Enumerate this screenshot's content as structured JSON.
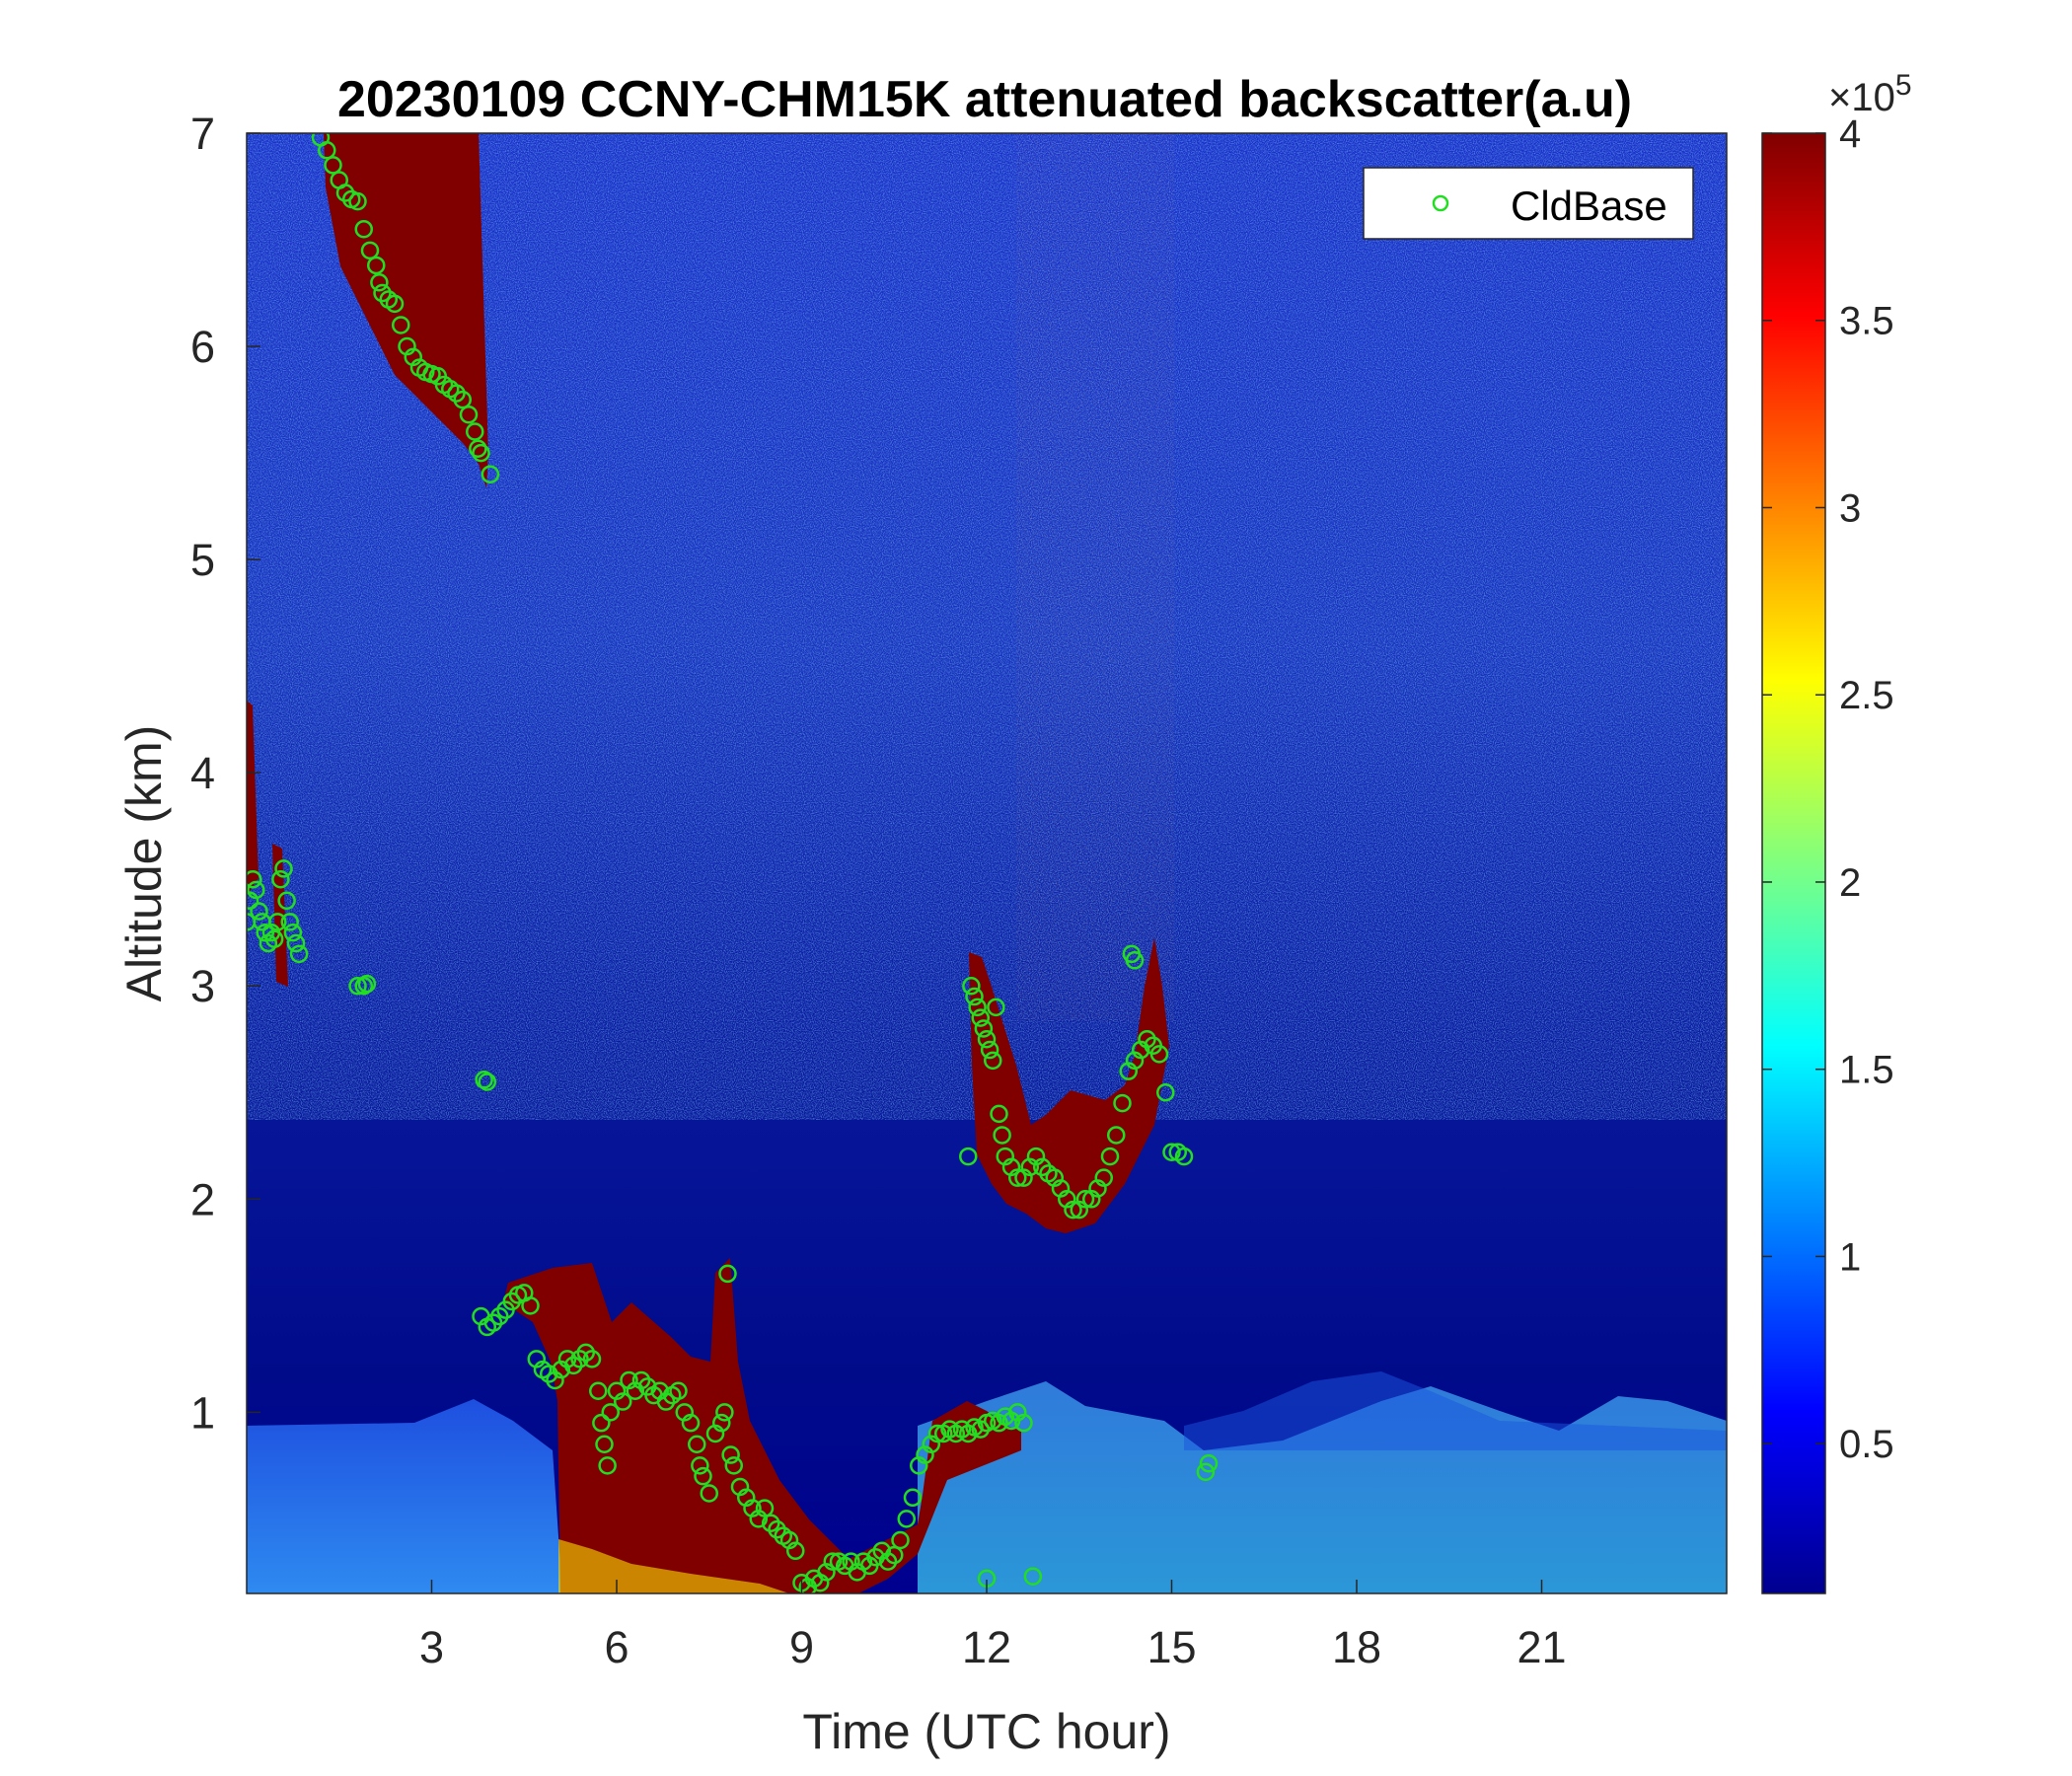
{
  "chart_data": {
    "type": "heatmap",
    "title": "20230109 CCNY-CHM15K attenuated backscatter(a.u)",
    "xlabel": "Time (UTC hour)",
    "ylabel": "Altitude (km)",
    "xlim": [
      0,
      24
    ],
    "ylim": [
      0.15,
      7
    ],
    "xticks": [
      3,
      6,
      9,
      12,
      15,
      18,
      21
    ],
    "yticks": [
      1,
      2,
      3,
      4,
      5,
      6,
      7
    ],
    "colorbar": {
      "colormap": "jet",
      "limits": [
        0.1,
        4
      ],
      "ticks": [
        0.5,
        1,
        1.5,
        2,
        2.5,
        3,
        3.5,
        4
      ],
      "multiplier": "×10",
      "exponent": "5"
    },
    "grid": false,
    "legend": {
      "location": "top-right",
      "entries": [
        "CldBase"
      ]
    },
    "colors": {
      "cloud_base_marker": "#22dd22",
      "background_low": "#00008f",
      "saturated": "#800000"
    },
    "series": [
      {
        "name": "CldBase",
        "marker": "circle",
        "points": [
          [
            0.0,
            3.3
          ],
          [
            0.05,
            3.4
          ],
          [
            0.1,
            3.5
          ],
          [
            0.15,
            3.45
          ],
          [
            0.2,
            3.35
          ],
          [
            0.25,
            3.3
          ],
          [
            0.3,
            3.25
          ],
          [
            0.35,
            3.2
          ],
          [
            0.4,
            3.25
          ],
          [
            0.45,
            3.22
          ],
          [
            0.5,
            3.3
          ],
          [
            0.55,
            3.5
          ],
          [
            0.6,
            3.55
          ],
          [
            0.65,
            3.4
          ],
          [
            0.7,
            3.3
          ],
          [
            0.75,
            3.25
          ],
          [
            0.8,
            3.2
          ],
          [
            0.85,
            3.15
          ],
          [
            1.2,
            6.98
          ],
          [
            1.3,
            6.92
          ],
          [
            1.4,
            6.85
          ],
          [
            1.5,
            6.78
          ],
          [
            1.6,
            6.72
          ],
          [
            1.7,
            6.69
          ],
          [
            1.8,
            6.68
          ],
          [
            1.9,
            6.55
          ],
          [
            2.0,
            6.45
          ],
          [
            2.1,
            6.38
          ],
          [
            2.15,
            6.3
          ],
          [
            2.2,
            6.25
          ],
          [
            2.3,
            6.22
          ],
          [
            2.4,
            6.2
          ],
          [
            2.5,
            6.1
          ],
          [
            2.6,
            6.0
          ],
          [
            2.7,
            5.95
          ],
          [
            2.8,
            5.9
          ],
          [
            2.9,
            5.88
          ],
          [
            3.0,
            5.87
          ],
          [
            3.1,
            5.86
          ],
          [
            3.2,
            5.82
          ],
          [
            3.3,
            5.8
          ],
          [
            3.4,
            5.78
          ],
          [
            3.5,
            5.75
          ],
          [
            3.6,
            5.68
          ],
          [
            3.7,
            5.6
          ],
          [
            3.75,
            5.52
          ],
          [
            3.8,
            5.5
          ],
          [
            3.95,
            5.4
          ],
          [
            1.8,
            3.0
          ],
          [
            1.9,
            3.0
          ],
          [
            1.95,
            3.01
          ],
          [
            3.85,
            2.56
          ],
          [
            3.9,
            2.55
          ],
          [
            3.8,
            1.45
          ],
          [
            3.9,
            1.4
          ],
          [
            4.0,
            1.42
          ],
          [
            4.1,
            1.45
          ],
          [
            4.2,
            1.48
          ],
          [
            4.3,
            1.52
          ],
          [
            4.4,
            1.55
          ],
          [
            4.5,
            1.56
          ],
          [
            4.6,
            1.5
          ],
          [
            4.7,
            1.25
          ],
          [
            4.8,
            1.2
          ],
          [
            4.9,
            1.18
          ],
          [
            5.0,
            1.15
          ],
          [
            5.1,
            1.2
          ],
          [
            5.2,
            1.25
          ],
          [
            5.3,
            1.22
          ],
          [
            5.4,
            1.25
          ],
          [
            5.5,
            1.28
          ],
          [
            5.6,
            1.25
          ],
          [
            5.7,
            1.1
          ],
          [
            5.75,
            0.95
          ],
          [
            5.8,
            0.85
          ],
          [
            5.85,
            0.75
          ],
          [
            5.9,
            1.0
          ],
          [
            6.0,
            1.1
          ],
          [
            6.1,
            1.05
          ],
          [
            6.2,
            1.15
          ],
          [
            6.3,
            1.1
          ],
          [
            6.4,
            1.15
          ],
          [
            6.5,
            1.12
          ],
          [
            6.6,
            1.08
          ],
          [
            6.7,
            1.1
          ],
          [
            6.8,
            1.05
          ],
          [
            6.9,
            1.08
          ],
          [
            7.0,
            1.1
          ],
          [
            7.1,
            1.0
          ],
          [
            7.2,
            0.95
          ],
          [
            7.3,
            0.85
          ],
          [
            7.35,
            0.75
          ],
          [
            7.4,
            0.7
          ],
          [
            7.5,
            0.62
          ],
          [
            7.6,
            0.9
          ],
          [
            7.7,
            0.95
          ],
          [
            7.75,
            1.0
          ],
          [
            7.8,
            1.65
          ],
          [
            7.85,
            0.8
          ],
          [
            7.9,
            0.75
          ],
          [
            8.0,
            0.65
          ],
          [
            8.1,
            0.6
          ],
          [
            8.2,
            0.55
          ],
          [
            8.3,
            0.5
          ],
          [
            8.4,
            0.55
          ],
          [
            8.5,
            0.48
          ],
          [
            8.6,
            0.45
          ],
          [
            8.7,
            0.42
          ],
          [
            8.8,
            0.4
          ],
          [
            8.9,
            0.35
          ],
          [
            9.0,
            0.2
          ],
          [
            9.1,
            0.18
          ],
          [
            9.2,
            0.22
          ],
          [
            9.3,
            0.2
          ],
          [
            9.4,
            0.25
          ],
          [
            9.5,
            0.3
          ],
          [
            9.6,
            0.3
          ],
          [
            9.7,
            0.28
          ],
          [
            9.8,
            0.3
          ],
          [
            9.9,
            0.25
          ],
          [
            10.0,
            0.3
          ],
          [
            10.1,
            0.28
          ],
          [
            10.2,
            0.32
          ],
          [
            10.3,
            0.35
          ],
          [
            10.4,
            0.3
          ],
          [
            10.5,
            0.33
          ],
          [
            10.6,
            0.4
          ],
          [
            10.7,
            0.5
          ],
          [
            10.8,
            0.6
          ],
          [
            10.9,
            0.75
          ],
          [
            11.0,
            0.8
          ],
          [
            11.1,
            0.85
          ],
          [
            11.2,
            0.9
          ],
          [
            11.3,
            0.9
          ],
          [
            11.4,
            0.92
          ],
          [
            11.5,
            0.9
          ],
          [
            11.6,
            0.92
          ],
          [
            11.7,
            0.9
          ],
          [
            11.8,
            0.93
          ],
          [
            11.9,
            0.92
          ],
          [
            12.0,
            0.95
          ],
          [
            12.1,
            0.96
          ],
          [
            12.2,
            0.95
          ],
          [
            12.3,
            0.98
          ],
          [
            12.4,
            0.96
          ],
          [
            12.5,
            1.0
          ],
          [
            12.6,
            0.95
          ],
          [
            11.7,
            2.2
          ],
          [
            11.75,
            3.0
          ],
          [
            11.8,
            2.95
          ],
          [
            11.85,
            2.9
          ],
          [
            11.9,
            2.85
          ],
          [
            11.95,
            2.8
          ],
          [
            12.0,
            2.75
          ],
          [
            12.05,
            2.7
          ],
          [
            12.1,
            2.65
          ],
          [
            12.15,
            2.9
          ],
          [
            12.2,
            2.4
          ],
          [
            12.25,
            2.3
          ],
          [
            12.3,
            2.2
          ],
          [
            12.4,
            2.15
          ],
          [
            12.5,
            2.1
          ],
          [
            12.6,
            2.1
          ],
          [
            12.7,
            2.15
          ],
          [
            12.8,
            2.2
          ],
          [
            12.9,
            2.15
          ],
          [
            13.0,
            2.12
          ],
          [
            13.1,
            2.1
          ],
          [
            13.2,
            2.05
          ],
          [
            13.3,
            2.0
          ],
          [
            13.4,
            1.95
          ],
          [
            13.5,
            1.95
          ],
          [
            13.6,
            2.0
          ],
          [
            13.7,
            2.0
          ],
          [
            13.8,
            2.05
          ],
          [
            13.9,
            2.1
          ],
          [
            14.0,
            2.2
          ],
          [
            14.1,
            2.3
          ],
          [
            14.2,
            2.45
          ],
          [
            14.3,
            2.6
          ],
          [
            14.4,
            2.65
          ],
          [
            14.5,
            2.7
          ],
          [
            14.6,
            2.75
          ],
          [
            14.7,
            2.72
          ],
          [
            14.8,
            2.68
          ],
          [
            14.9,
            2.5
          ],
          [
            15.0,
            2.22
          ],
          [
            15.1,
            2.22
          ],
          [
            15.2,
            2.2
          ],
          [
            14.35,
            3.15
          ],
          [
            14.4,
            3.12
          ],
          [
            15.55,
            0.72
          ],
          [
            15.6,
            0.76
          ],
          [
            12.75,
            0.23
          ],
          [
            12.0,
            0.22
          ]
        ]
      }
    ]
  }
}
